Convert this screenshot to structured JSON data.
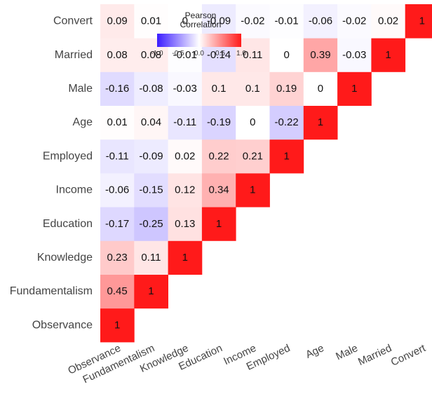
{
  "chart_data": {
    "type": "heatmap",
    "title": "",
    "xlabel": "",
    "ylabel": "",
    "variables": [
      "Observance",
      "Fundamentalism",
      "Knowledge",
      "Education",
      "Income",
      "Employed",
      "Age",
      "Male",
      "Married",
      "Convert"
    ],
    "matrix": [
      [
        1
      ],
      [
        0.45,
        1
      ],
      [
        0.23,
        0.11,
        1
      ],
      [
        -0.17,
        -0.25,
        0.13,
        1
      ],
      [
        -0.06,
        -0.15,
        0.12,
        0.34,
        1
      ],
      [
        -0.11,
        -0.09,
        0.02,
        0.22,
        0.21,
        1
      ],
      [
        0.01,
        0.04,
        -0.11,
        -0.19,
        0,
        -0.22,
        1
      ],
      [
        -0.16,
        -0.08,
        -0.03,
        0.1,
        0.1,
        0.19,
        0,
        1
      ],
      [
        0.08,
        0.08,
        -0.01,
        -0.14,
        0.11,
        0,
        0.39,
        -0.03,
        1
      ],
      [
        0.09,
        0.01,
        0,
        -0.09,
        -0.02,
        -0.01,
        -0.06,
        -0.02,
        0.02,
        1
      ]
    ],
    "legend": {
      "title_lines": [
        "Pearson",
        "Correlation"
      ],
      "ticks": [
        "-1.0",
        "-0.5",
        "0.0",
        "0.5",
        "1.0"
      ],
      "range": [
        -1,
        1
      ],
      "placement": "top-center"
    },
    "colors": {
      "low": "#3b1cff",
      "mid": "#ffffff",
      "high": "#ff1a1a"
    }
  }
}
